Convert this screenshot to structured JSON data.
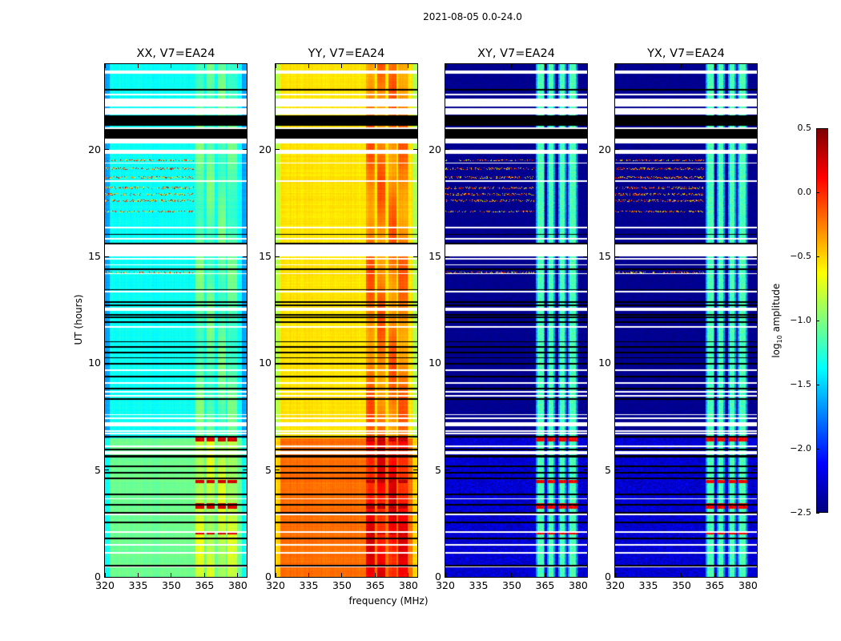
{
  "chart_data": {
    "type": "heatmap",
    "title": "2021-08-05 0.0-24.0",
    "xlabel": "frequency (MHz)",
    "ylabel": "UT (hours)",
    "xlim": [
      320,
      384
    ],
    "ylim": [
      0,
      24
    ],
    "xticks": [
      320,
      335,
      350,
      365,
      380
    ],
    "yticks": [
      0,
      5,
      10,
      15,
      20
    ],
    "colormap": "jet",
    "colorbar": {
      "label_main": "log",
      "label_sub": "10",
      "label_rest": " amplitude",
      "range": [
        -2.5,
        0.5
      ],
      "ticks": [
        0.5,
        0.0,
        -0.5,
        -1.0,
        -1.5,
        -2.0,
        -2.5
      ],
      "tick_labels": [
        "0.5",
        "0.0",
        "−0.5",
        "−1.0",
        "−1.5",
        "−2.0",
        "−2.5"
      ]
    },
    "subbands_mhz": [
      [
        361,
        365
      ],
      [
        366,
        369.5
      ],
      [
        371,
        374.5
      ],
      [
        375.5,
        379.5
      ]
    ],
    "panels": [
      {
        "title": "XX, V7=EA24",
        "log_amp_before_6_5h": -1.05,
        "log_amp_after_6_5h": -1.35,
        "subband_boost": 0.35,
        "hot_rows_log_amp": 0.4,
        "edge_drop": 0.3
      },
      {
        "title": "YY, V7=EA24",
        "log_amp_before_6_5h": -0.2,
        "log_amp_after_6_5h": -0.55,
        "subband_boost": 0.45,
        "hot_rows_log_amp": 0.45,
        "edge_drop": 0.3
      },
      {
        "title": "XY, V7=EA24",
        "log_amp_before_6_5h": -2.25,
        "log_amp_after_6_5h": -2.45,
        "subband_level": -1.15,
        "hot_rows_log_amp": 0.3,
        "edge_drop": 0
      },
      {
        "title": "YX, V7=EA24",
        "log_amp_before_6_5h": -2.25,
        "log_amp_after_6_5h": -2.45,
        "subband_level": -1.15,
        "hot_rows_log_amp": 0.3,
        "edge_drop": 0
      }
    ],
    "hot_rows_hours": [
      [
        6.35,
        6.6
      ],
      [
        4.4,
        4.55
      ],
      [
        3.2,
        3.45
      ],
      [
        2.0,
        2.1
      ]
    ],
    "rfi_rows_hours": [
      19.5,
      19.1,
      18.7,
      18.2,
      17.9,
      17.6,
      17.1,
      14.25
    ],
    "flagged_black_hours": [
      [
        21.1,
        21.6
      ],
      [
        20.5,
        20.95
      ],
      [
        22.78,
        22.84
      ],
      [
        16.0,
        16.06
      ],
      [
        15.58,
        15.64
      ],
      [
        14.38,
        14.44
      ],
      [
        13.42,
        13.48
      ],
      [
        12.84,
        12.9
      ],
      [
        12.68,
        12.74
      ],
      [
        12.24,
        12.3
      ],
      [
        12.13,
        12.19
      ],
      [
        11.88,
        11.96
      ],
      [
        10.98,
        11.04
      ],
      [
        10.74,
        10.8
      ],
      [
        10.48,
        10.54
      ],
      [
        10.22,
        10.28
      ],
      [
        9.93,
        10.02
      ],
      [
        9.35,
        9.41
      ],
      [
        8.79,
        8.85
      ],
      [
        8.3,
        8.36
      ],
      [
        6.53,
        6.6
      ],
      [
        5.94,
        6.0
      ],
      [
        5.58,
        5.7
      ],
      [
        5.15,
        5.21
      ],
      [
        4.85,
        4.91
      ],
      [
        4.59,
        4.65
      ],
      [
        3.84,
        3.9
      ],
      [
        3.35,
        3.41
      ],
      [
        2.98,
        3.04
      ],
      [
        2.53,
        2.59
      ],
      [
        1.78,
        1.84
      ],
      [
        0.5,
        0.56
      ]
    ],
    "flagged_white_hours": [
      [
        23.55,
        23.7
      ],
      [
        22.52,
        22.62
      ],
      [
        22.0,
        22.4
      ],
      [
        21.65,
        21.92
      ],
      [
        20.95,
        21.05
      ],
      [
        20.3,
        20.5
      ],
      [
        19.8,
        20.0
      ],
      [
        19.35,
        19.4
      ],
      [
        18.5,
        18.55
      ],
      [
        16.33,
        16.38
      ],
      [
        15.78,
        15.88
      ],
      [
        15.0,
        15.58
      ],
      [
        14.86,
        14.92
      ],
      [
        14.57,
        14.63
      ],
      [
        14.17,
        14.23
      ],
      [
        13.33,
        13.38
      ],
      [
        12.45,
        12.6
      ],
      [
        11.68,
        11.73
      ],
      [
        9.65,
        9.7
      ],
      [
        9.05,
        9.1
      ],
      [
        8.64,
        8.69
      ],
      [
        8.45,
        8.5
      ],
      [
        7.58,
        7.63
      ],
      [
        7.4,
        7.45
      ],
      [
        7.05,
        7.24
      ],
      [
        6.8,
        6.85
      ],
      [
        6.69,
        6.74
      ],
      [
        6.09,
        6.14
      ],
      [
        5.75,
        5.9
      ],
      [
        3.62,
        3.67
      ],
      [
        2.9,
        2.95
      ],
      [
        2.08,
        2.13
      ],
      [
        1.48,
        1.53
      ],
      [
        1.1,
        1.15
      ],
      [
        0.46,
        0.5
      ]
    ]
  }
}
